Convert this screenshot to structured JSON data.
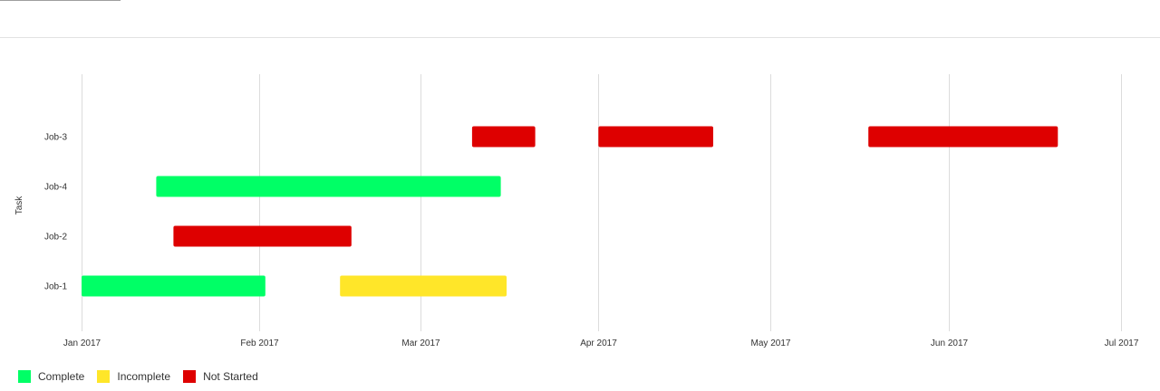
{
  "chart_data": {
    "type": "gantt",
    "ylabel": "Task",
    "x_ticks": [
      "Jan 2017",
      "Feb 2017",
      "Mar 2017",
      "Apr 2017",
      "May 2017",
      "Jun 2017",
      "Jul 2017"
    ],
    "xlim": [
      "2017-01-01",
      "2017-07-01"
    ],
    "tasks": [
      "Job-3",
      "Job-4",
      "Job-2",
      "Job-1"
    ],
    "legend": [
      {
        "name": "Complete",
        "color": "#00ff66"
      },
      {
        "name": "Incomplete",
        "color": "#ffe629"
      },
      {
        "name": "Not Started",
        "color": "#de0000"
      }
    ],
    "legend_position": "bottom-left",
    "grid": "vertical",
    "bars": [
      {
        "task": "Job-3",
        "start": "2017-03-10",
        "end": "2017-03-21",
        "status": "Not Started"
      },
      {
        "task": "Job-3",
        "start": "2017-04-01",
        "end": "2017-04-21",
        "status": "Not Started"
      },
      {
        "task": "Job-3",
        "start": "2017-05-18",
        "end": "2017-06-20",
        "status": "Not Started"
      },
      {
        "task": "Job-4",
        "start": "2017-01-14",
        "end": "2017-03-15",
        "status": "Complete"
      },
      {
        "task": "Job-2",
        "start": "2017-01-17",
        "end": "2017-02-17",
        "status": "Not Started"
      },
      {
        "task": "Job-1",
        "start": "2017-01-01",
        "end": "2017-02-02",
        "status": "Complete"
      },
      {
        "task": "Job-1",
        "start": "2017-02-15",
        "end": "2017-03-16",
        "status": "Incomplete"
      }
    ]
  }
}
